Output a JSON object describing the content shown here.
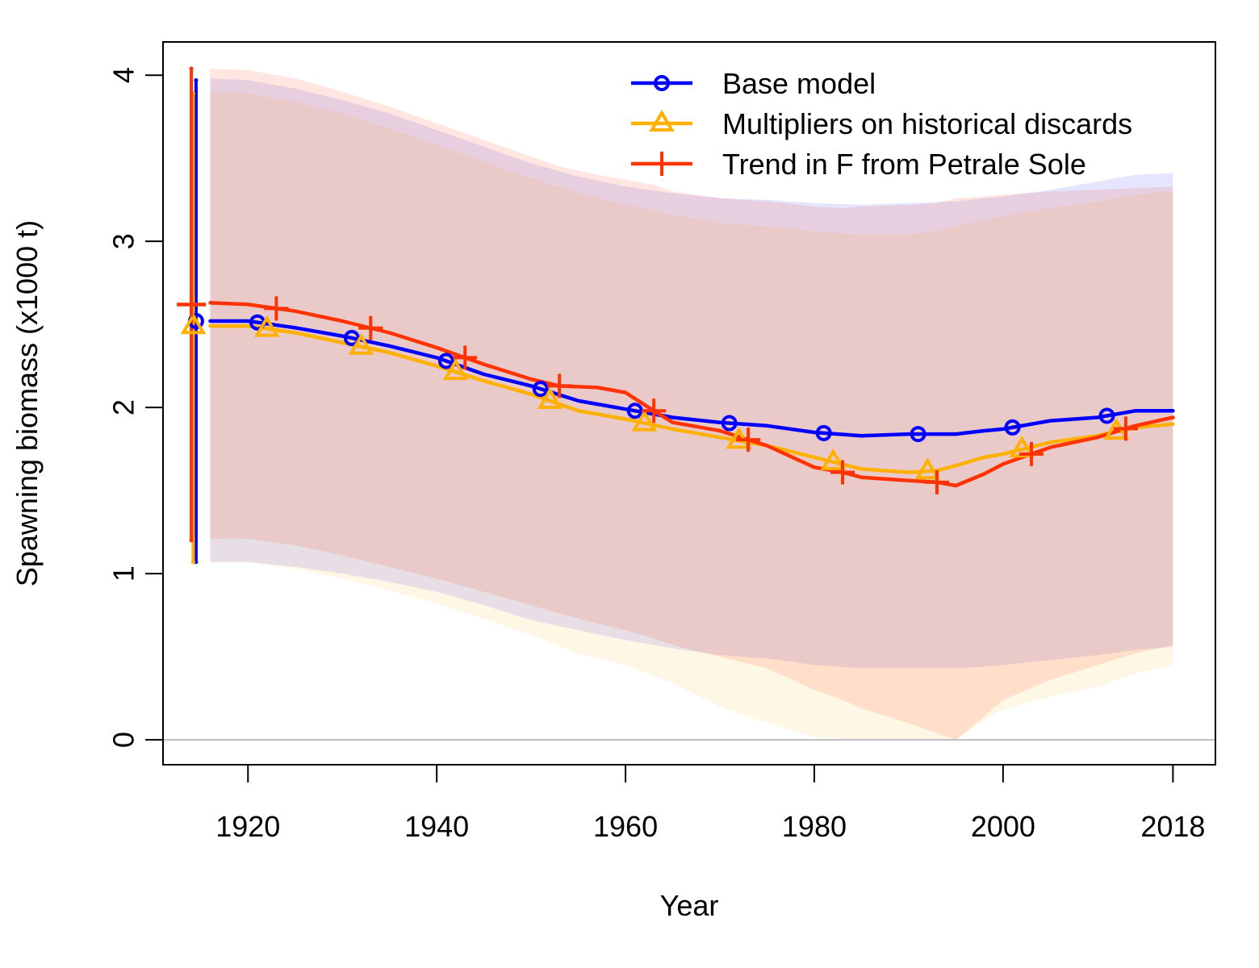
{
  "chart_data": {
    "type": "line",
    "xlabel": "Year",
    "ylabel": "Spawning biomass (x1000 t)",
    "xlim": [
      1911,
      2022.5
    ],
    "ylim": [
      -0.15,
      4.2
    ],
    "xticks": [
      1920,
      1940,
      1960,
      1980,
      2000,
      2018
    ],
    "yticks": [
      0,
      1,
      2,
      3,
      4
    ],
    "legend_position": "top-right",
    "grid": false,
    "series": [
      {
        "name": "Base model",
        "color": "#0000ff",
        "marker": "circle",
        "marker_x": [
          1921,
          1931,
          1941,
          1951,
          1961,
          1971,
          1981,
          1991,
          2001,
          2011
        ],
        "x": [
          1916,
          1920,
          1925,
          1930,
          1935,
          1940,
          1945,
          1950,
          1955,
          1960,
          1965,
          1970,
          1975,
          1980,
          1985,
          1990,
          1995,
          1998,
          2000,
          2005,
          2010,
          2014,
          2018
        ],
        "y": [
          2.52,
          2.52,
          2.48,
          2.43,
          2.37,
          2.3,
          2.2,
          2.13,
          2.04,
          1.99,
          1.94,
          1.91,
          1.89,
          1.85,
          1.83,
          1.84,
          1.84,
          1.86,
          1.87,
          1.92,
          1.94,
          1.98,
          1.98
        ],
        "initial": {
          "x": 1914.5,
          "y": 2.52,
          "lower": 1.07,
          "upper": 3.97
        },
        "upper": [
          3.98,
          3.97,
          3.92,
          3.85,
          3.77,
          3.67,
          3.57,
          3.47,
          3.39,
          3.33,
          3.29,
          3.26,
          3.25,
          3.23,
          3.22,
          3.23,
          3.24,
          3.26,
          3.27,
          3.31,
          3.36,
          3.4,
          3.41
        ],
        "lower": [
          1.07,
          1.07,
          1.04,
          1.0,
          0.95,
          0.89,
          0.81,
          0.72,
          0.66,
          0.6,
          0.55,
          0.51,
          0.49,
          0.45,
          0.43,
          0.43,
          0.43,
          0.44,
          0.45,
          0.48,
          0.51,
          0.54,
          0.56
        ]
      },
      {
        "name": "Multipliers on historical discards",
        "color": "#ffb000",
        "marker": "triangle",
        "marker_x": [
          1922,
          1932,
          1942,
          1952,
          1962,
          1972,
          1982,
          1992,
          2002,
          2012
        ],
        "x": [
          1916,
          1920,
          1925,
          1930,
          1935,
          1940,
          1945,
          1950,
          1955,
          1960,
          1965,
          1970,
          1975,
          1980,
          1985,
          1990,
          1993,
          1995,
          1998,
          2000,
          2005,
          2010,
          2014,
          2018
        ],
        "y": [
          2.49,
          2.49,
          2.45,
          2.39,
          2.33,
          2.25,
          2.16,
          2.08,
          1.98,
          1.93,
          1.87,
          1.82,
          1.77,
          1.7,
          1.63,
          1.61,
          1.62,
          1.65,
          1.7,
          1.72,
          1.79,
          1.83,
          1.88,
          1.9
        ],
        "initial": {
          "x": 1914.2,
          "y": 2.49,
          "lower": 1.07,
          "upper": 3.89
        },
        "upper": [
          3.9,
          3.89,
          3.84,
          3.77,
          3.68,
          3.58,
          3.48,
          3.38,
          3.29,
          3.22,
          3.16,
          3.11,
          3.09,
          3.06,
          3.04,
          3.04,
          3.06,
          3.09,
          3.13,
          3.15,
          3.2,
          3.24,
          3.28,
          3.3
        ],
        "lower": [
          1.07,
          1.07,
          1.03,
          0.97,
          0.9,
          0.82,
          0.73,
          0.63,
          0.52,
          0.45,
          0.34,
          0.2,
          0.1,
          0.02,
          0.0,
          0.0,
          0.0,
          0.0,
          0.12,
          0.18,
          0.26,
          0.32,
          0.4,
          0.45
        ]
      },
      {
        "name": "Trend in F from Petrale Sole",
        "color": "#ff3300",
        "marker": "plus",
        "marker_x": [
          1923,
          1933,
          1943,
          1953,
          1963,
          1973,
          1983,
          1993,
          2003,
          2013
        ],
        "x": [
          1916,
          1920,
          1925,
          1930,
          1935,
          1940,
          1945,
          1950,
          1953,
          1957,
          1960,
          1963,
          1965,
          1970,
          1975,
          1980,
          1983,
          1985,
          1990,
          1993,
          1995,
          1998,
          2000,
          2005,
          2010,
          2014,
          2018
        ],
        "y": [
          2.63,
          2.62,
          2.58,
          2.52,
          2.45,
          2.36,
          2.26,
          2.17,
          2.13,
          2.12,
          2.09,
          1.98,
          1.91,
          1.86,
          1.77,
          1.64,
          1.61,
          1.58,
          1.56,
          1.55,
          1.53,
          1.6,
          1.66,
          1.76,
          1.82,
          1.89,
          1.94
        ],
        "initial": {
          "x": 1914.0,
          "y": 2.62,
          "lower": 1.2,
          "upper": 4.04
        },
        "upper": [
          4.04,
          4.03,
          3.98,
          3.9,
          3.81,
          3.71,
          3.61,
          3.51,
          3.45,
          3.4,
          3.37,
          3.34,
          3.3,
          3.26,
          3.24,
          3.21,
          3.2,
          3.21,
          3.22,
          3.23,
          3.26,
          3.27,
          3.28,
          3.3,
          3.31,
          3.32,
          3.33
        ],
        "lower": [
          1.21,
          1.21,
          1.17,
          1.11,
          1.04,
          0.97,
          0.89,
          0.81,
          0.76,
          0.7,
          0.66,
          0.61,
          0.57,
          0.5,
          0.43,
          0.3,
          0.24,
          0.19,
          0.1,
          0.04,
          0.0,
          0.14,
          0.24,
          0.36,
          0.45,
          0.52,
          0.57
        ]
      }
    ]
  }
}
